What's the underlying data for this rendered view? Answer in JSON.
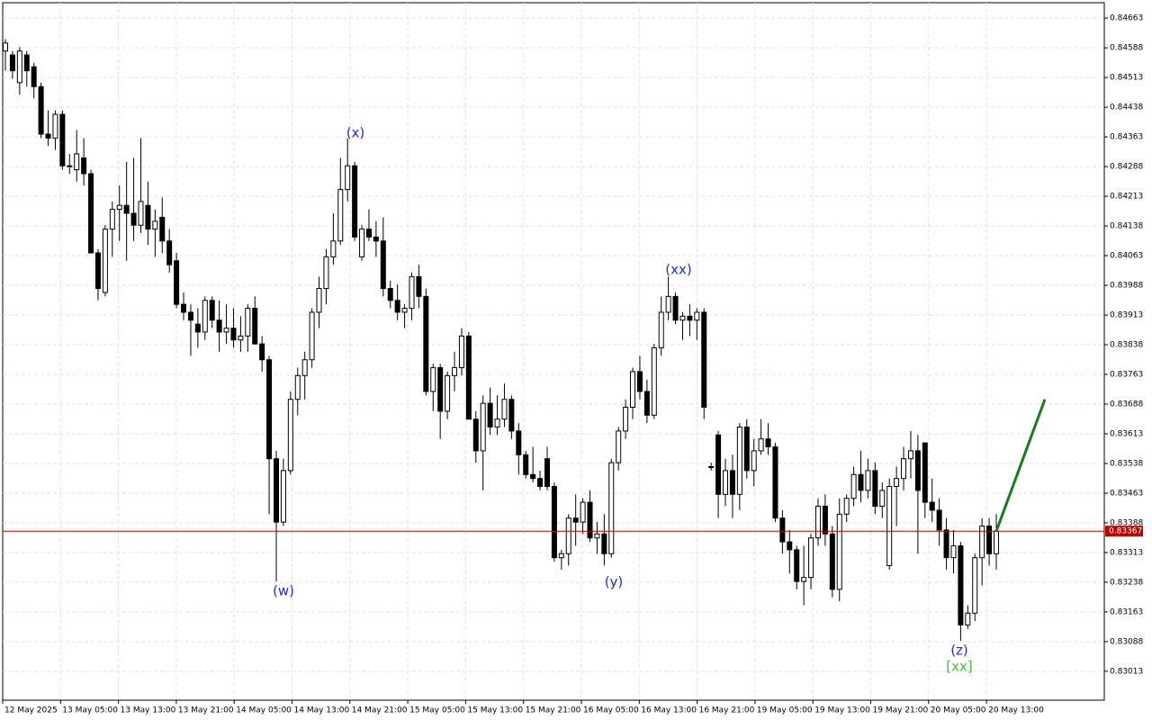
{
  "chart_data": {
    "type": "candlestick",
    "ylim": [
      0.8294,
      0.84702
    ],
    "yticks": [
      0.84663,
      0.84588,
      0.84513,
      0.84438,
      0.84363,
      0.84288,
      0.84213,
      0.84138,
      0.84063,
      0.83988,
      0.83913,
      0.83838,
      0.83763,
      0.83688,
      0.83613,
      0.83538,
      0.83463,
      0.83388,
      0.83313,
      0.83238,
      0.83163,
      0.83088,
      0.83013
    ],
    "x_labels": [
      "12 May 2025",
      "13 May 05:00",
      "13 May 13:00",
      "13 May 21:00",
      "14 May 05:00",
      "14 May 13:00",
      "14 May 21:00",
      "15 May 05:00",
      "15 May 13:00",
      "15 May 21:00",
      "16 May 05:00",
      "16 May 13:00",
      "16 May 21:00",
      "19 May 05:00",
      "19 May 13:00",
      "19 May 21:00",
      "20 May 05:00",
      "20 May 13:00"
    ],
    "grid": true,
    "current_price": 0.83367,
    "current_price_color": "#c00000",
    "projection": {
      "color": "#1a7a1a",
      "values": [
        0.83367,
        0.837
      ]
    },
    "annotations": [
      {
        "text": "(w)",
        "color": "#1f2fd0"
      },
      {
        "text": "(x)",
        "color": "#1f2fd0"
      },
      {
        "text": "(y)",
        "color": "#1f2fd0"
      },
      {
        "text": "(xx)",
        "color": "#1f2fd0"
      },
      {
        "text": "(z)",
        "color": "#1f2fd0"
      },
      {
        "text": "[xx]",
        "color": "#3cc23c"
      }
    ],
    "ohlc": [
      [
        0.8458,
        0.8461,
        0.8453,
        0.846
      ],
      [
        0.8457,
        0.8458,
        0.8451,
        0.8453
      ],
      [
        0.845,
        0.8459,
        0.8447,
        0.8458
      ],
      [
        0.8457,
        0.8458,
        0.8449,
        0.8453
      ],
      [
        0.8454,
        0.8455,
        0.8446,
        0.8449
      ],
      [
        0.8449,
        0.845,
        0.8436,
        0.8437
      ],
      [
        0.8437,
        0.8443,
        0.8434,
        0.8436
      ],
      [
        0.8436,
        0.8443,
        0.8433,
        0.8442
      ],
      [
        0.8442,
        0.8443,
        0.8428,
        0.8429
      ],
      [
        0.8429,
        0.8432,
        0.8427,
        0.8429
      ],
      [
        0.8428,
        0.8438,
        0.8425,
        0.8432
      ],
      [
        0.8431,
        0.8436,
        0.8424,
        0.8427
      ],
      [
        0.8427,
        0.8428,
        0.8407,
        0.8407
      ],
      [
        0.8407,
        0.8408,
        0.8395,
        0.8398
      ],
      [
        0.8397,
        0.8414,
        0.8396,
        0.8413
      ],
      [
        0.8413,
        0.842,
        0.8406,
        0.8418
      ],
      [
        0.8418,
        0.8424,
        0.841,
        0.8419
      ],
      [
        0.8419,
        0.843,
        0.8405,
        0.8417
      ],
      [
        0.8417,
        0.8431,
        0.841,
        0.8414
      ],
      [
        0.8414,
        0.8436,
        0.8412,
        0.842
      ],
      [
        0.8419,
        0.8425,
        0.8409,
        0.8413
      ],
      [
        0.8413,
        0.8418,
        0.8406,
        0.8415
      ],
      [
        0.8416,
        0.8421,
        0.8407,
        0.841
      ],
      [
        0.841,
        0.8413,
        0.8402,
        0.8404
      ],
      [
        0.8405,
        0.8407,
        0.8393,
        0.8394
      ],
      [
        0.8394,
        0.8397,
        0.839,
        0.8392
      ],
      [
        0.8392,
        0.8394,
        0.8381,
        0.839
      ],
      [
        0.8389,
        0.8393,
        0.8383,
        0.8387
      ],
      [
        0.8387,
        0.8396,
        0.8385,
        0.8395
      ],
      [
        0.8395,
        0.8396,
        0.8388,
        0.839
      ],
      [
        0.839,
        0.8395,
        0.8382,
        0.8387
      ],
      [
        0.8387,
        0.8394,
        0.8384,
        0.8388
      ],
      [
        0.8388,
        0.8393,
        0.8383,
        0.8385
      ],
      [
        0.8385,
        0.8391,
        0.8382,
        0.8386
      ],
      [
        0.8386,
        0.8394,
        0.8382,
        0.8393
      ],
      [
        0.8393,
        0.8396,
        0.8384,
        0.8384
      ],
      [
        0.8384,
        0.8386,
        0.8377,
        0.838
      ],
      [
        0.838,
        0.8381,
        0.8341,
        0.8355
      ],
      [
        0.8355,
        0.8357,
        0.8324,
        0.8339
      ],
      [
        0.8339,
        0.8355,
        0.8338,
        0.8352
      ],
      [
        0.8352,
        0.8372,
        0.8351,
        0.837
      ],
      [
        0.837,
        0.8378,
        0.8366,
        0.8376
      ],
      [
        0.8376,
        0.8382,
        0.837,
        0.838
      ],
      [
        0.838,
        0.8393,
        0.8378,
        0.8392
      ],
      [
        0.8392,
        0.8401,
        0.8388,
        0.8398
      ],
      [
        0.8398,
        0.8408,
        0.8394,
        0.8406
      ],
      [
        0.8406,
        0.8417,
        0.8404,
        0.841
      ],
      [
        0.841,
        0.8431,
        0.8409,
        0.8423
      ],
      [
        0.8423,
        0.8436,
        0.842,
        0.8429
      ],
      [
        0.8429,
        0.843,
        0.841,
        0.8411
      ],
      [
        0.8406,
        0.8414,
        0.8405,
        0.8413
      ],
      [
        0.8413,
        0.8418,
        0.841,
        0.8411
      ],
      [
        0.8411,
        0.8415,
        0.8406,
        0.841
      ],
      [
        0.841,
        0.8416,
        0.8396,
        0.8398
      ],
      [
        0.8398,
        0.84,
        0.8393,
        0.8395
      ],
      [
        0.8395,
        0.8399,
        0.839,
        0.8392
      ],
      [
        0.8392,
        0.8394,
        0.8388,
        0.8393
      ],
      [
        0.8393,
        0.8402,
        0.839,
        0.8401
      ],
      [
        0.8401,
        0.8404,
        0.8393,
        0.8396
      ],
      [
        0.8396,
        0.8398,
        0.8371,
        0.8372
      ],
      [
        0.8372,
        0.8379,
        0.8367,
        0.8378
      ],
      [
        0.8378,
        0.8379,
        0.836,
        0.8367
      ],
      [
        0.8367,
        0.8377,
        0.8365,
        0.8376
      ],
      [
        0.8376,
        0.8382,
        0.8372,
        0.8378
      ],
      [
        0.8378,
        0.8388,
        0.8376,
        0.8386
      ],
      [
        0.8386,
        0.8387,
        0.8365,
        0.8365
      ],
      [
        0.8365,
        0.8367,
        0.8354,
        0.8357
      ],
      [
        0.8357,
        0.8371,
        0.8347,
        0.8369
      ],
      [
        0.8369,
        0.8373,
        0.8361,
        0.8363
      ],
      [
        0.8363,
        0.8371,
        0.8361,
        0.8365
      ],
      [
        0.8365,
        0.8374,
        0.8363,
        0.837
      ],
      [
        0.837,
        0.8371,
        0.836,
        0.8362
      ],
      [
        0.8362,
        0.8364,
        0.8351,
        0.8356
      ],
      [
        0.8356,
        0.8357,
        0.835,
        0.8351
      ],
      [
        0.8351,
        0.8358,
        0.8349,
        0.835
      ],
      [
        0.835,
        0.8352,
        0.8347,
        0.8348
      ],
      [
        0.8355,
        0.8358,
        0.8347,
        0.8348
      ],
      [
        0.8348,
        0.8349,
        0.8329,
        0.833
      ],
      [
        0.833,
        0.8332,
        0.8327,
        0.8331
      ],
      [
        0.8331,
        0.8341,
        0.8328,
        0.834
      ],
      [
        0.834,
        0.8346,
        0.8333,
        0.8339
      ],
      [
        0.8339,
        0.8345,
        0.8336,
        0.8344
      ],
      [
        0.8344,
        0.8347,
        0.8334,
        0.8335
      ],
      [
        0.8335,
        0.8339,
        0.8331,
        0.8336
      ],
      [
        0.8336,
        0.8341,
        0.8328,
        0.8331
      ],
      [
        0.8331,
        0.8355,
        0.833,
        0.8354
      ],
      [
        0.8354,
        0.8363,
        0.8352,
        0.8362
      ],
      [
        0.8362,
        0.837,
        0.836,
        0.8368
      ],
      [
        0.8368,
        0.8378,
        0.8365,
        0.8377
      ],
      [
        0.8377,
        0.8381,
        0.837,
        0.8372
      ],
      [
        0.8372,
        0.8375,
        0.8364,
        0.8366
      ],
      [
        0.8366,
        0.8384,
        0.8365,
        0.8383
      ],
      [
        0.8383,
        0.8396,
        0.8381,
        0.8392
      ],
      [
        0.8392,
        0.8401,
        0.839,
        0.8396
      ],
      [
        0.8396,
        0.8397,
        0.8389,
        0.839
      ],
      [
        0.839,
        0.8392,
        0.8385,
        0.8391
      ],
      [
        0.8391,
        0.8394,
        0.8386,
        0.839
      ],
      [
        0.839,
        0.8393,
        0.8385,
        0.8392
      ],
      [
        0.8392,
        0.8393,
        0.8365,
        0.8368
      ],
      [
        0.8353,
        0.8354,
        0.8352,
        0.8353
      ],
      [
        0.8361,
        0.8362,
        0.834,
        0.8346
      ],
      [
        0.8346,
        0.8355,
        0.8343,
        0.8352
      ],
      [
        0.8352,
        0.8356,
        0.834,
        0.8346
      ],
      [
        0.8346,
        0.8364,
        0.8342,
        0.8363
      ],
      [
        0.8363,
        0.8365,
        0.835,
        0.8352
      ],
      [
        0.8352,
        0.836,
        0.8348,
        0.8357
      ],
      [
        0.8357,
        0.8365,
        0.8356,
        0.836
      ],
      [
        0.836,
        0.8364,
        0.8356,
        0.8358
      ],
      [
        0.8358,
        0.8359,
        0.8339,
        0.834
      ],
      [
        0.834,
        0.8342,
        0.8331,
        0.8334
      ],
      [
        0.8334,
        0.8337,
        0.8326,
        0.8332
      ],
      [
        0.8332,
        0.8333,
        0.8322,
        0.8324
      ],
      [
        0.8324,
        0.8333,
        0.8318,
        0.8325
      ],
      [
        0.8325,
        0.8336,
        0.8322,
        0.8335
      ],
      [
        0.8335,
        0.8345,
        0.8333,
        0.8343
      ],
      [
        0.8343,
        0.8346,
        0.8333,
        0.8336
      ],
      [
        0.8336,
        0.8338,
        0.832,
        0.8322
      ],
      [
        0.8322,
        0.8345,
        0.8319,
        0.8341
      ],
      [
        0.8341,
        0.8346,
        0.8339,
        0.8345
      ],
      [
        0.8345,
        0.8353,
        0.8343,
        0.8351
      ],
      [
        0.8351,
        0.8357,
        0.8344,
        0.8347
      ],
      [
        0.8347,
        0.8355,
        0.8345,
        0.8352
      ],
      [
        0.8352,
        0.8354,
        0.8341,
        0.8343
      ],
      [
        0.8343,
        0.8349,
        0.834,
        0.8347
      ],
      [
        0.8328,
        0.835,
        0.8327,
        0.8348
      ],
      [
        0.8348,
        0.8353,
        0.8338,
        0.835
      ],
      [
        0.835,
        0.8358,
        0.8347,
        0.8355
      ],
      [
        0.8355,
        0.8362,
        0.835,
        0.8357
      ],
      [
        0.8357,
        0.8361,
        0.8331,
        0.8347
      ],
      [
        0.8359,
        0.8359,
        0.834,
        0.8344
      ],
      [
        0.8344,
        0.835,
        0.8339,
        0.8342
      ],
      [
        0.8342,
        0.8345,
        0.8333,
        0.8337
      ],
      [
        0.8337,
        0.834,
        0.8327,
        0.833
      ],
      [
        0.833,
        0.8337,
        0.8326,
        0.8333
      ],
      [
        0.8333,
        0.8334,
        0.8309,
        0.8313
      ],
      [
        0.8313,
        0.8318,
        0.8312,
        0.8316
      ],
      [
        0.8316,
        0.8331,
        0.8314,
        0.833
      ],
      [
        0.833,
        0.834,
        0.8323,
        0.8338
      ],
      [
        0.8338,
        0.834,
        0.8328,
        0.8331
      ],
      [
        0.8331,
        0.8341,
        0.8327,
        0.83367
      ]
    ]
  }
}
